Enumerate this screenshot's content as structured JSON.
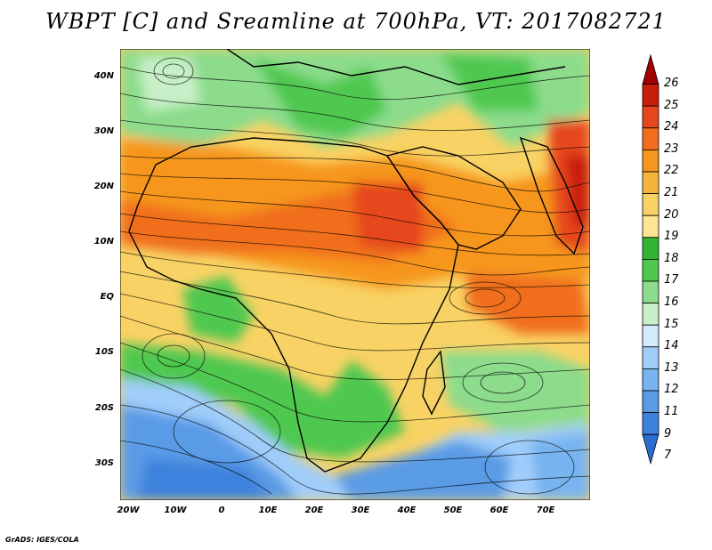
{
  "title": "WBPT [C] and Sreamline at 700hPa, VT: 2017082721",
  "credit": "GrADS: IGES/COLA",
  "latitude_labels": [
    "40N",
    "30N",
    "20N",
    "10N",
    "EQ",
    "10S",
    "20S",
    "30S"
  ],
  "longitude_labels": [
    "20W",
    "10W",
    "0",
    "10E",
    "20E",
    "30E",
    "40E",
    "50E",
    "60E",
    "70E"
  ],
  "colorbar": {
    "labels": [
      "26",
      "25",
      "24",
      "23",
      "22",
      "21",
      "20",
      "19",
      "18",
      "17",
      "16",
      "15",
      "14",
      "13",
      "12",
      "11",
      "9",
      "7"
    ],
    "colors": [
      "#a00000",
      "#c81e0a",
      "#e6461e",
      "#f06e1e",
      "#f6961e",
      "#f5b43c",
      "#f8d264",
      "#fce692",
      "#32b432",
      "#50c850",
      "#8cdc8c",
      "#c8f0c8",
      "#d2ebff",
      "#a0cdfa",
      "#78b4f0",
      "#5a9be6",
      "#3c82dc",
      "#2a6cd2"
    ]
  },
  "map": {
    "variable": "Wet-bulb potential temperature and streamlines",
    "level": "700hPa",
    "valid_time": "2017082721"
  }
}
